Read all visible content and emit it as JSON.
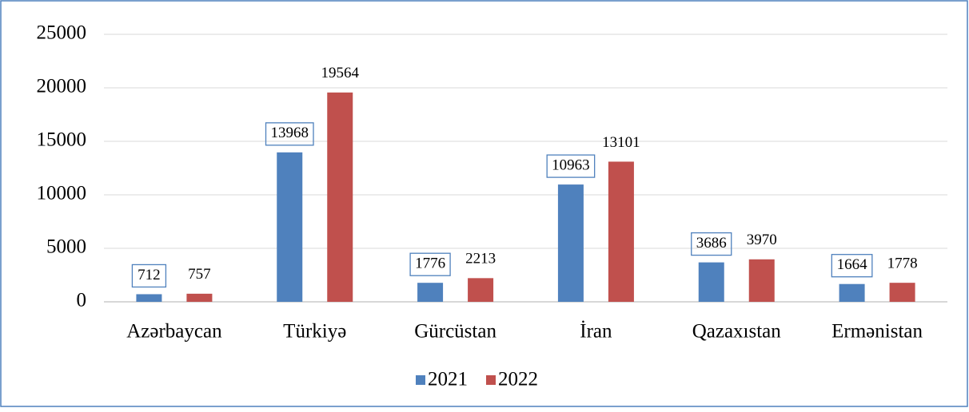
{
  "chart_data": {
    "type": "bar",
    "categories": [
      "Azərbaycan",
      "Türkiyə",
      "Gürcüstan",
      "İran",
      "Qazaxıstan",
      "Ermənistan"
    ],
    "series": [
      {
        "name": "2021",
        "color": "#4f81bd",
        "label_border": "#4f81bd",
        "values": [
          712,
          13968,
          1776,
          10963,
          3686,
          1664
        ]
      },
      {
        "name": "2022",
        "color": "#c0504d",
        "values": [
          757,
          19564,
          2213,
          13101,
          3970,
          1778
        ]
      }
    ],
    "ylim": [
      0,
      25000
    ],
    "yticks": [
      0,
      5000,
      10000,
      15000,
      20000,
      25000
    ],
    "grid": true,
    "legend": "bottom"
  }
}
